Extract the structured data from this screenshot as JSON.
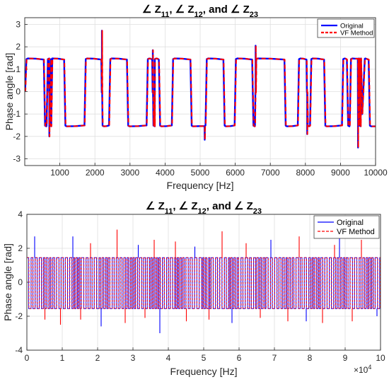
{
  "chart_data": [
    {
      "type": "line",
      "title": {
        "angle_symbol": "∠",
        "parts": [
          [
            "Z",
            "11"
          ],
          [
            "Z",
            "12"
          ],
          [
            "Z",
            "23"
          ]
        ],
        "conj": "and"
      },
      "xlabel": "Frequency [Hz]",
      "ylabel": "Phase angle [rad]",
      "xlim": [
        0,
        10000
      ],
      "ylim": [
        -3.3,
        3.3
      ],
      "xticks": [
        1000,
        2000,
        3000,
        4000,
        5000,
        6000,
        7000,
        8000,
        9000,
        10000
      ],
      "xtick_labels": [
        "1000",
        "2000",
        "3000",
        "4000",
        "5000",
        "6000",
        "7000",
        "8000",
        "9000",
        "10000"
      ],
      "yticks": [
        -3,
        -2,
        -1,
        0,
        1,
        2,
        3
      ],
      "ytick_labels": [
        "-3",
        "-2",
        "-1",
        "0",
        "1",
        "2",
        "3"
      ],
      "grid": true,
      "legend_position": "top-right",
      "colors": {
        "original": "#0000ff",
        "vf": "#ff0000"
      },
      "series": [
        {
          "name": "Original",
          "style": "solid"
        },
        {
          "name": "VF Method",
          "style": "dashed"
        }
      ],
      "phase_levels": {
        "high": 1.48,
        "low": -1.55
      },
      "transitions": [
        {
          "x": 30,
          "type": "rise"
        },
        {
          "x": 560,
          "type": "fall"
        },
        {
          "x": 640,
          "type": "rise"
        },
        {
          "x": 700,
          "type": "spike",
          "peak": -2.0
        },
        {
          "x": 700,
          "type": "fall"
        },
        {
          "x": 730,
          "type": "rise"
        },
        {
          "x": 1140,
          "type": "fall"
        },
        {
          "x": 1720,
          "type": "rise"
        },
        {
          "x": 2200,
          "type": "spike",
          "peak": 2.72
        },
        {
          "x": 2200,
          "type": "fall"
        },
        {
          "x": 2420,
          "type": "rise"
        },
        {
          "x": 2930,
          "type": "fall"
        },
        {
          "x": 3490,
          "type": "rise"
        },
        {
          "x": 3650,
          "type": "spike",
          "peak": 1.85
        },
        {
          "x": 3650,
          "type": "fall"
        },
        {
          "x": 3690,
          "type": "rise"
        },
        {
          "x": 3840,
          "type": "fall"
        },
        {
          "x": 4210,
          "type": "rise"
        },
        {
          "x": 4740,
          "type": "fall"
        },
        {
          "x": 5130,
          "type": "spike",
          "peak": -2.15
        },
        {
          "x": 5170,
          "type": "rise"
        },
        {
          "x": 5680,
          "type": "fall"
        },
        {
          "x": 6000,
          "type": "rise"
        },
        {
          "x": 6500,
          "type": "fall"
        },
        {
          "x": 6580,
          "type": "spike",
          "peak": 2.05
        },
        {
          "x": 6580,
          "type": "rise"
        },
        {
          "x": 7420,
          "type": "fall"
        },
        {
          "x": 7800,
          "type": "rise"
        },
        {
          "x": 8050,
          "type": "spike",
          "peak": -1.9
        },
        {
          "x": 8050,
          "type": "fall"
        },
        {
          "x": 8150,
          "type": "rise"
        },
        {
          "x": 8550,
          "type": "fall"
        },
        {
          "x": 9060,
          "type": "rise"
        },
        {
          "x": 9200,
          "type": "fall"
        },
        {
          "x": 9280,
          "type": "rise"
        },
        {
          "x": 9500,
          "type": "spike",
          "peak": -2.5
        },
        {
          "x": 9520,
          "type": "fall"
        },
        {
          "x": 9530,
          "type": "rise"
        },
        {
          "x": 9620,
          "type": "dip",
          "peak": -1.0
        },
        {
          "x": 9820,
          "type": "fall"
        }
      ]
    },
    {
      "type": "line",
      "title": {
        "angle_symbol": "∠",
        "parts": [
          [
            "Z",
            "11"
          ],
          [
            "Z",
            "12"
          ],
          [
            "Z",
            "23"
          ]
        ],
        "conj": "and"
      },
      "xlabel": "Frequency [Hz]",
      "ylabel": "Phase angle [rad]",
      "xlim": [
        0,
        100000
      ],
      "ylim": [
        -4,
        4
      ],
      "xticks": [
        0,
        10000,
        20000,
        30000,
        40000,
        50000,
        60000,
        70000,
        80000,
        90000,
        100000
      ],
      "xtick_labels": [
        "0",
        "1",
        "2",
        "3",
        "4",
        "5",
        "6",
        "7",
        "8",
        "9",
        "10"
      ],
      "x_multiplier": {
        "base": "×10",
        "exponent": "4"
      },
      "yticks": [
        -4,
        -2,
        0,
        2,
        4
      ],
      "ytick_labels": [
        "-4",
        "-2",
        "0",
        "2",
        "4"
      ],
      "grid": true,
      "legend_position": "top-right",
      "colors": {
        "original": "#0000ff",
        "vf": "#ff0000"
      },
      "series": [
        {
          "name": "Original",
          "style": "solid"
        },
        {
          "name": "VF Method",
          "style": "dashed"
        }
      ],
      "phase_levels": {
        "high": 1.45,
        "low": -1.55
      },
      "half_period_hz": 600,
      "spikes": [
        {
          "x": 2200,
          "y": 2.7
        },
        {
          "x": 5100,
          "y": -2.2
        },
        {
          "x": 9500,
          "y": -2.5
        },
        {
          "x": 13000,
          "y": 2.7
        },
        {
          "x": 15200,
          "y": -2.2
        },
        {
          "x": 18000,
          "y": 2.3
        },
        {
          "x": 21000,
          "y": -2.6
        },
        {
          "x": 25500,
          "y": 3.1
        },
        {
          "x": 27800,
          "y": -2.4
        },
        {
          "x": 31500,
          "y": 2.2
        },
        {
          "x": 33400,
          "y": -2.1
        },
        {
          "x": 36000,
          "y": 2.5
        },
        {
          "x": 37600,
          "y": -3.0
        },
        {
          "x": 42000,
          "y": 2.4
        },
        {
          "x": 45100,
          "y": -2.3
        },
        {
          "x": 47500,
          "y": 2.1
        },
        {
          "x": 51500,
          "y": -2.2
        },
        {
          "x": 55200,
          "y": 3.0
        },
        {
          "x": 58000,
          "y": -2.4
        },
        {
          "x": 62000,
          "y": 2.3
        },
        {
          "x": 66000,
          "y": -2.1
        },
        {
          "x": 69000,
          "y": 2.5
        },
        {
          "x": 73800,
          "y": -2.3
        },
        {
          "x": 77000,
          "y": 2.7
        },
        {
          "x": 79000,
          "y": -2.3
        },
        {
          "x": 83600,
          "y": -2.4
        },
        {
          "x": 87000,
          "y": 2.2
        },
        {
          "x": 88400,
          "y": 2.6
        },
        {
          "x": 92000,
          "y": -2.3
        },
        {
          "x": 94600,
          "y": 2.5
        },
        {
          "x": 99000,
          "y": -2.0
        }
      ]
    }
  ]
}
